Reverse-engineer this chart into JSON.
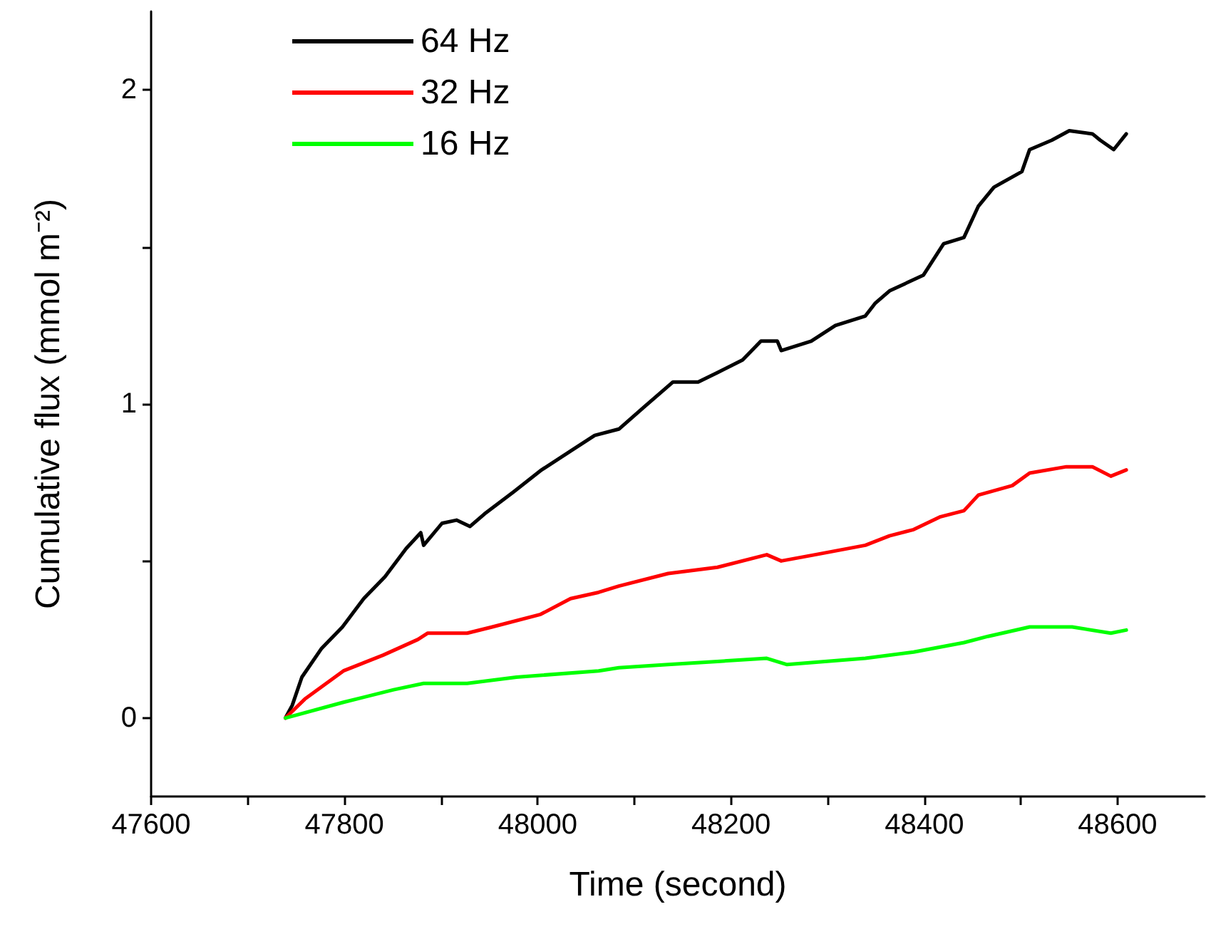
{
  "chart_data": {
    "type": "line",
    "xlabel": "Time (second)",
    "ylabel": "Cumulative flux (mmol m⁻²)",
    "xlim": [
      47600,
      48690
    ],
    "ylim": [
      -0.25,
      2.25
    ],
    "xticks": [
      47600,
      {
        "value": 47700,
        "label": null
      },
      47800,
      {
        "value": 47900,
        "label": null
      },
      48000,
      {
        "value": 48100,
        "label": null
      },
      48200,
      {
        "value": 48300,
        "label": null
      },
      48400,
      {
        "value": 48500,
        "label": null
      },
      48600
    ],
    "yticks": [
      0,
      {
        "value": 0.5,
        "label": null
      },
      1,
      {
        "value": 1.5,
        "label": null
      },
      2
    ],
    "grid": false,
    "legend": "top left",
    "marker": "none",
    "line_style": "solid",
    "series": [
      {
        "name": "64 Hz",
        "color": "#000000",
        "x": [
          47739,
          47746,
          47756,
          47776,
          47798,
          47820,
          47842,
          47864,
          47879,
          47882,
          47901,
          47916,
          47930,
          47945,
          47975,
          48004,
          48034,
          48059,
          48084,
          48110,
          48140,
          48166,
          48186,
          48212,
          48231,
          48248,
          48252,
          48283,
          48308,
          48339,
          48349,
          48364,
          48385,
          48399,
          48420,
          48441,
          48456,
          48472,
          48501,
          48509,
          48532,
          48550,
          48574,
          48582,
          48596,
          48609
        ],
        "values": [
          0.0,
          0.04,
          0.13,
          0.22,
          0.29,
          0.38,
          0.45,
          0.54,
          0.59,
          0.55,
          0.62,
          0.63,
          0.61,
          0.65,
          0.72,
          0.79,
          0.85,
          0.9,
          0.92,
          0.99,
          1.07,
          1.07,
          1.1,
          1.14,
          1.2,
          1.2,
          1.17,
          1.2,
          1.25,
          1.28,
          1.32,
          1.36,
          1.39,
          1.41,
          1.51,
          1.53,
          1.63,
          1.69,
          1.74,
          1.81,
          1.84,
          1.87,
          1.86,
          1.84,
          1.81,
          1.86
        ]
      },
      {
        "name": "32 Hz",
        "color": "#ff0000",
        "x": [
          47739,
          47759,
          47799,
          47840,
          47876,
          47886,
          47927,
          47953,
          48003,
          48034,
          48063,
          48084,
          48135,
          48186,
          48237,
          48252,
          48287,
          48339,
          48364,
          48389,
          48416,
          48441,
          48456,
          48491,
          48509,
          48547,
          48574,
          48593,
          48609
        ],
        "values": [
          0.0,
          0.06,
          0.15,
          0.2,
          0.25,
          0.27,
          0.27,
          0.29,
          0.33,
          0.38,
          0.4,
          0.42,
          0.46,
          0.48,
          0.52,
          0.5,
          0.52,
          0.55,
          0.58,
          0.6,
          0.64,
          0.66,
          0.71,
          0.74,
          0.78,
          0.8,
          0.8,
          0.77,
          0.79
        ]
      },
      {
        "name": "16 Hz",
        "color": "#00ff00",
        "x": [
          47739,
          47799,
          47851,
          47882,
          47927,
          47978,
          48063,
          48084,
          48135,
          48186,
          48237,
          48258,
          48339,
          48389,
          48441,
          48466,
          48509,
          48553,
          48593,
          48609
        ],
        "values": [
          0.0,
          0.05,
          0.09,
          0.11,
          0.11,
          0.13,
          0.15,
          0.16,
          0.17,
          0.18,
          0.19,
          0.17,
          0.19,
          0.21,
          0.24,
          0.26,
          0.29,
          0.29,
          0.27,
          0.28
        ]
      }
    ]
  }
}
